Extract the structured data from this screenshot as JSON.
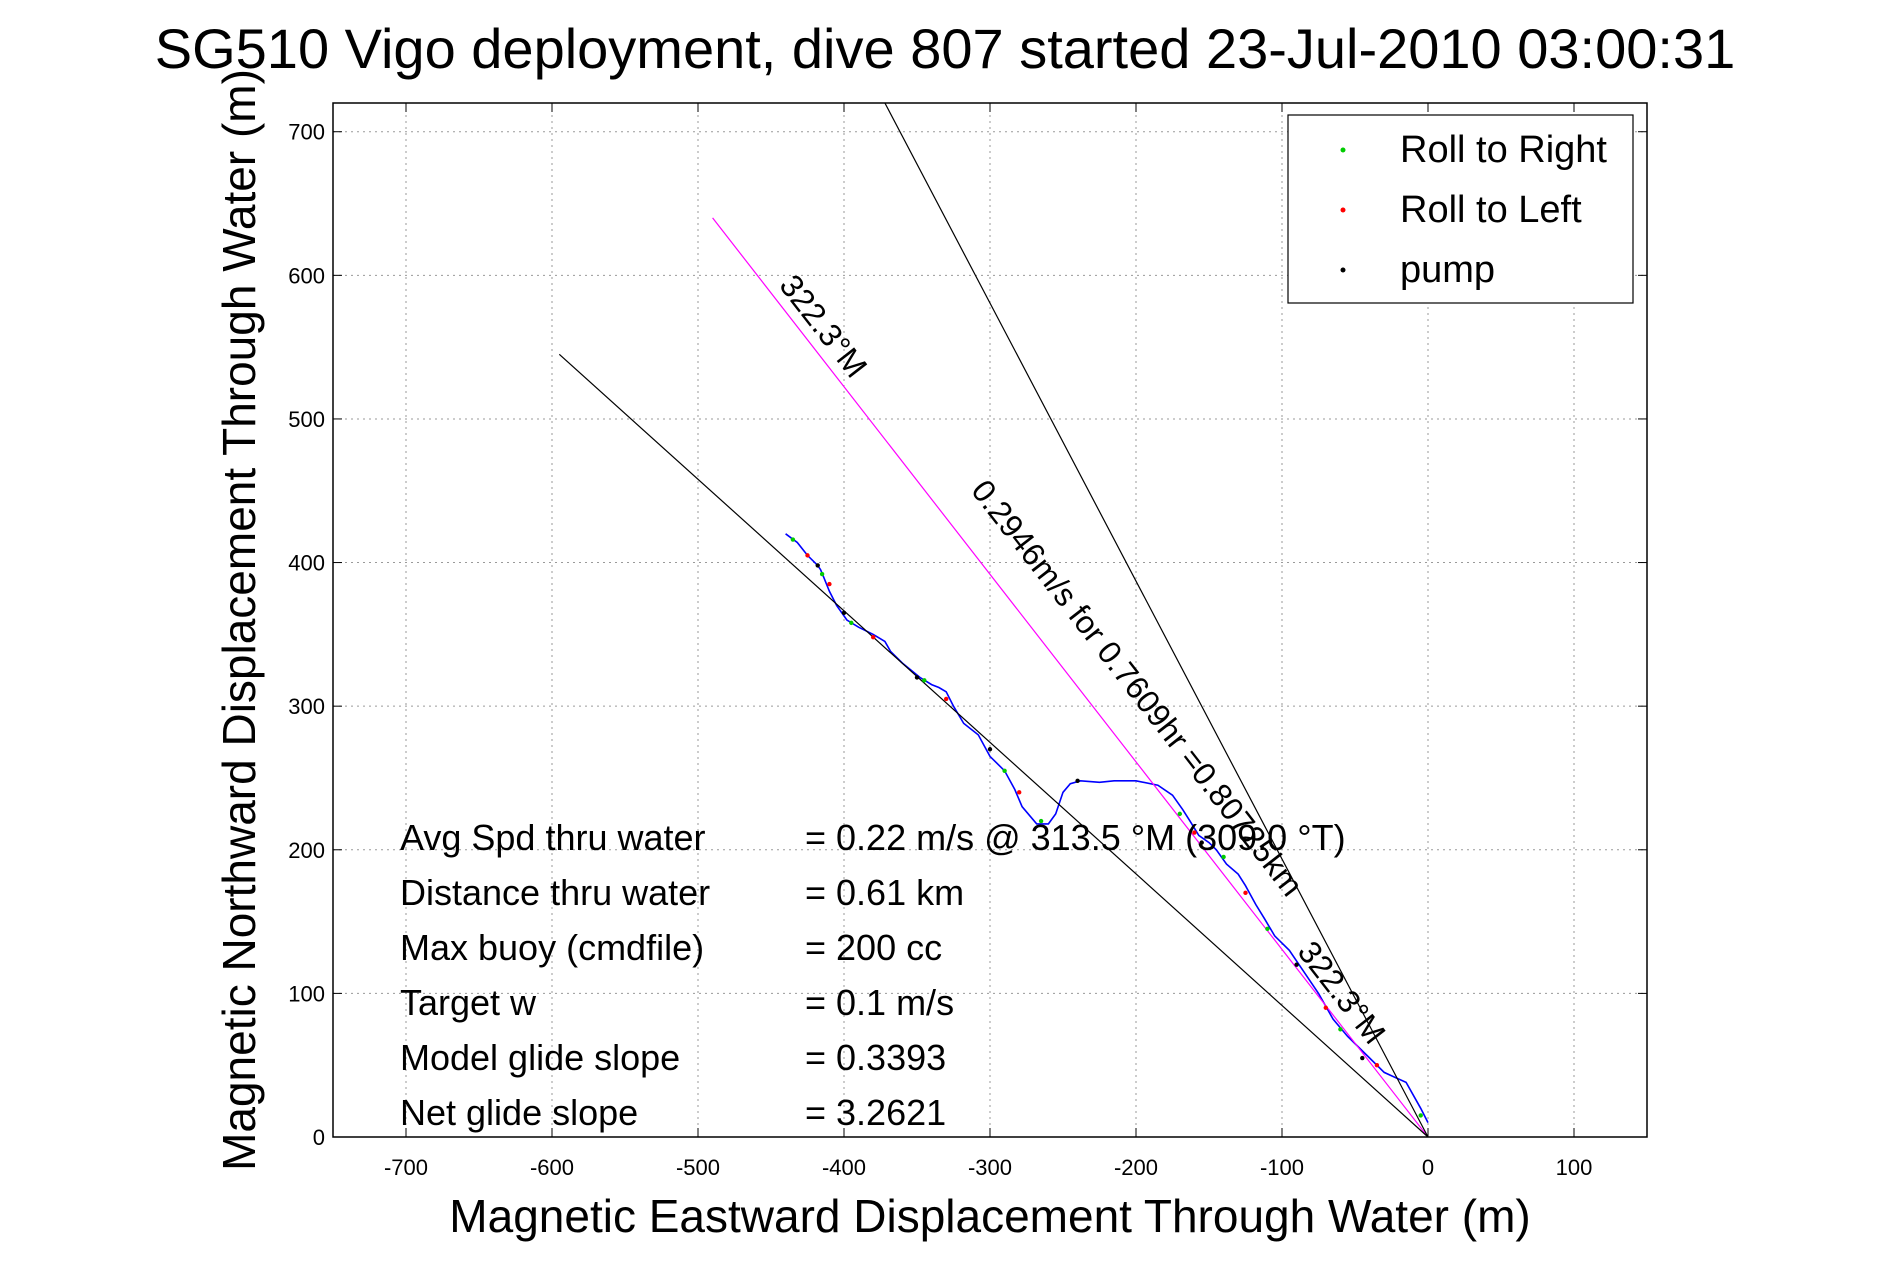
{
  "chart_data": {
    "type": "line",
    "title": "SG510 Vigo deployment, dive 807 started 23-Jul-2010 03:00:31",
    "xlabel": "Magnetic Eastward Displacement Through Water (m)",
    "ylabel": "Magnetic Northward Displacement Through Water (m)",
    "xlim": [
      -750,
      150
    ],
    "ylim": [
      0,
      720
    ],
    "xticks": [
      -700,
      -600,
      -500,
      -400,
      -300,
      -200,
      -100,
      0,
      100
    ],
    "yticks": [
      0,
      100,
      200,
      300,
      400,
      500,
      600,
      700
    ],
    "grid": true,
    "legend_position": "top-right",
    "legend": [
      {
        "label": "Roll to Right",
        "color": "#00cc00"
      },
      {
        "label": "Roll to Left",
        "color": "#ff0000"
      },
      {
        "label": "pump",
        "color": "#000000"
      }
    ],
    "series": [
      {
        "name": "track",
        "color": "#0000ff",
        "x": [
          0,
          -5,
          -15,
          -30,
          -40,
          -55,
          -65,
          -75,
          -85,
          -95,
          -105,
          -112,
          -118,
          -125,
          -130,
          -138,
          -145,
          -150,
          -157,
          -163,
          -168,
          -175,
          -185,
          -200,
          -215,
          -225,
          -238,
          -245,
          -250,
          -255,
          -260,
          -268,
          -278,
          -283,
          -290,
          -300,
          -308,
          -318,
          -325,
          -330,
          -335,
          -340,
          -348,
          -360,
          -368,
          -372,
          -380,
          -390,
          -398,
          -405,
          -410,
          -414,
          -416,
          -418,
          -425,
          -432,
          -440
        ],
        "y": [
          10,
          20,
          38,
          45,
          55,
          70,
          82,
          100,
          115,
          130,
          140,
          152,
          162,
          175,
          183,
          190,
          200,
          205,
          210,
          220,
          228,
          238,
          245,
          248,
          248,
          247,
          248,
          246,
          240,
          225,
          218,
          218,
          230,
          242,
          255,
          265,
          280,
          288,
          300,
          310,
          313,
          315,
          320,
          330,
          338,
          345,
          350,
          355,
          360,
          370,
          380,
          390,
          395,
          398,
          405,
          414,
          420
        ]
      },
      {
        "name": "heading line",
        "color": "#ff00ff",
        "x": [
          0,
          -490
        ],
        "y": [
          0,
          640
        ]
      },
      {
        "name": "bound-upper",
        "color": "#000000",
        "x": [
          0,
          -372
        ],
        "y": [
          0,
          720
        ]
      },
      {
        "name": "bound-lower",
        "color": "#000000",
        "x": [
          0,
          -595
        ],
        "y": [
          0,
          545
        ]
      }
    ],
    "point_markers": {
      "roll_right": [
        [
          -5,
          15
        ],
        [
          -60,
          75
        ],
        [
          -110,
          145
        ],
        [
          -140,
          195
        ],
        [
          -170,
          225
        ],
        [
          -265,
          220
        ],
        [
          -290,
          255
        ],
        [
          -345,
          318
        ],
        [
          -395,
          358
        ],
        [
          -415,
          392
        ],
        [
          -435,
          416
        ]
      ],
      "roll_left": [
        [
          -35,
          50
        ],
        [
          -70,
          90
        ],
        [
          -125,
          170
        ],
        [
          -160,
          212
        ],
        [
          -280,
          240
        ],
        [
          -330,
          305
        ],
        [
          -380,
          348
        ],
        [
          -410,
          385
        ],
        [
          -425,
          405
        ]
      ],
      "pump": [
        [
          -45,
          55
        ],
        [
          -90,
          120
        ],
        [
          -155,
          205
        ],
        [
          -240,
          248
        ],
        [
          -300,
          270
        ],
        [
          -350,
          320
        ],
        [
          -400,
          365
        ],
        [
          -418,
          398
        ]
      ]
    },
    "annotations": {
      "heading_label_far": "322.3°M",
      "distance_label": "0.2946m/s for 0.7609hr =0.80725km",
      "heading_label_near": "322.3°M"
    },
    "stats": [
      {
        "label": "Avg Spd thru water",
        "value": "=  0.22 m/s @ 313.5 °M (309.0 °T)"
      },
      {
        "label": "Distance thru water",
        "value": "=  0.61 km"
      },
      {
        "label": "Max buoy (cmdfile)",
        "value": "= 200 cc"
      },
      {
        "label": "Target w",
        "value": "= 0.1 m/s"
      },
      {
        "label": "Model glide slope",
        "value": "= 0.3393"
      },
      {
        "label": "Net glide slope",
        "value": "= 3.2621"
      }
    ]
  }
}
